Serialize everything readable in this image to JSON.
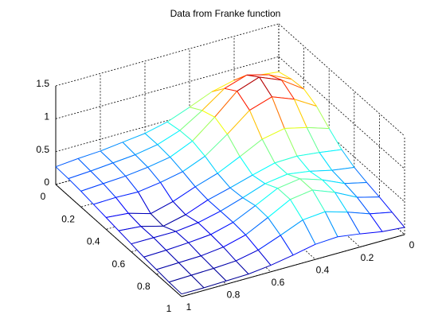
{
  "chart_data": {
    "type": "mesh",
    "title": "Data from Franke function",
    "x": [
      0,
      0.1,
      0.2,
      0.3,
      0.4,
      0.5,
      0.6,
      0.7,
      0.8,
      0.9,
      1
    ],
    "y": [
      0,
      0.1,
      0.2,
      0.3,
      0.4,
      0.5,
      0.6,
      0.7,
      0.8,
      0.9,
      1
    ],
    "z": [
      [
        0.77,
        0.81,
        0.83,
        0.75,
        0.61,
        0.48,
        0.4,
        0.36,
        0.32,
        0.3,
        0.27
      ],
      [
        0.83,
        0.99,
        1.08,
        0.97,
        0.73,
        0.52,
        0.4,
        0.34,
        0.31,
        0.28,
        0.26
      ],
      [
        0.85,
        1.08,
        1.22,
        1.1,
        0.8,
        0.53,
        0.38,
        0.32,
        0.28,
        0.26,
        0.24
      ],
      [
        0.76,
        0.96,
        1.09,
        0.98,
        0.71,
        0.47,
        0.33,
        0.26,
        0.21,
        0.22,
        0.21
      ],
      [
        0.59,
        0.7,
        0.78,
        0.71,
        0.54,
        0.38,
        0.27,
        0.14,
        0.05,
        0.15,
        0.18
      ],
      [
        0.44,
        0.49,
        0.53,
        0.52,
        0.43,
        0.33,
        0.24,
        0.11,
        0.03,
        0.12,
        0.15
      ],
      [
        0.34,
        0.39,
        0.47,
        0.52,
        0.47,
        0.35,
        0.24,
        0.16,
        0.12,
        0.12,
        0.12
      ],
      [
        0.28,
        0.36,
        0.51,
        0.62,
        0.57,
        0.4,
        0.24,
        0.15,
        0.12,
        0.1,
        0.09
      ],
      [
        0.23,
        0.32,
        0.49,
        0.62,
        0.57,
        0.39,
        0.22,
        0.13,
        0.09,
        0.08,
        0.07
      ],
      [
        0.17,
        0.24,
        0.36,
        0.46,
        0.43,
        0.29,
        0.16,
        0.09,
        0.07,
        0.06,
        0.05
      ],
      [
        0.11,
        0.14,
        0.2,
        0.25,
        0.23,
        0.16,
        0.1,
        0.06,
        0.05,
        0.04,
        0.04
      ]
    ],
    "xlim": [
      0,
      1
    ],
    "ylim": [
      0,
      1
    ],
    "zlim": [
      0,
      1.5
    ],
    "xticks": [
      0,
      0.2,
      0.4,
      0.6,
      0.8,
      1
    ],
    "yticks": [
      0,
      0.2,
      0.4,
      0.6,
      0.8,
      1
    ],
    "zticks": [
      0,
      0.5,
      1,
      1.5
    ],
    "grid": true,
    "colormap": "jet"
  }
}
